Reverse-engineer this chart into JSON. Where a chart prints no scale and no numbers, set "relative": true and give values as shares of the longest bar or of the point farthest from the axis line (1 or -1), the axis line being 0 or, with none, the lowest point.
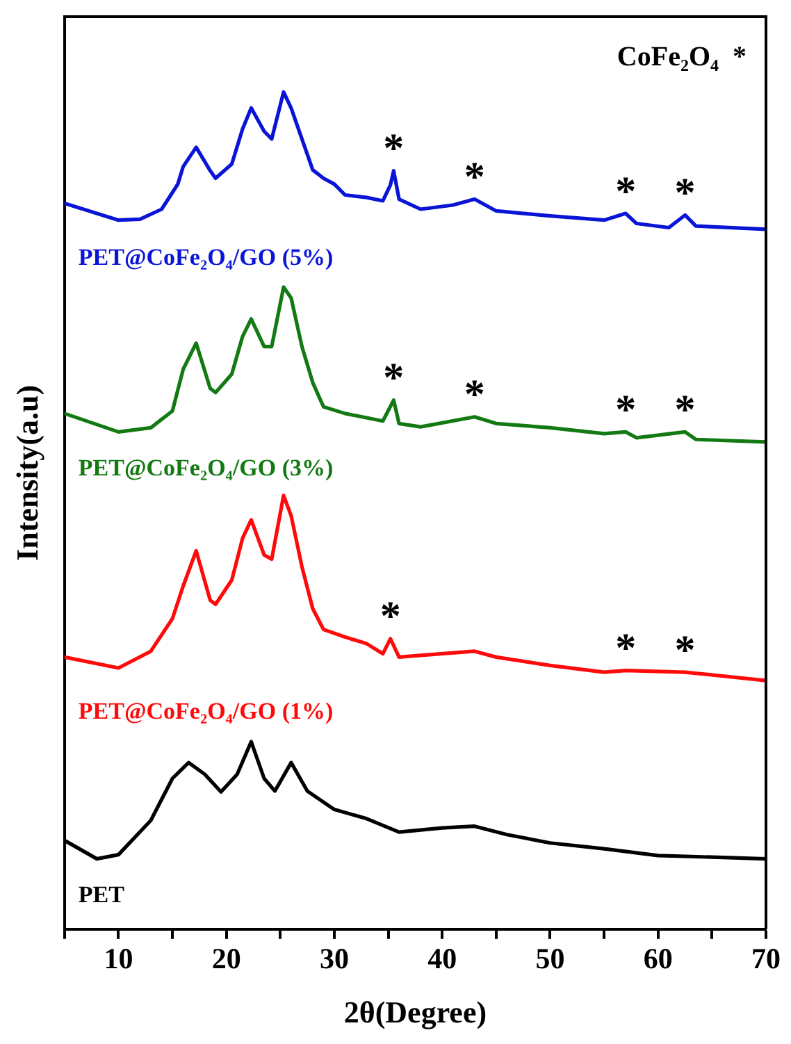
{
  "chart_data": {
    "type": "line",
    "relative": true,
    "xlabel": "2θ(Degree)",
    "ylabel": "Intensity(a.u)",
    "xlim": [
      5,
      70
    ],
    "xticks": [
      {
        "value": 5,
        "label": null
      },
      10,
      {
        "value": 15,
        "label": null
      },
      20,
      {
        "value": 25,
        "label": null
      },
      30,
      {
        "value": 35,
        "label": null
      },
      40,
      {
        "value": 45,
        "label": null
      },
      50,
      {
        "value": 55,
        "label": null
      },
      60,
      {
        "value": 65,
        "label": null
      },
      70
    ],
    "grid": false,
    "legend": false,
    "marker": "none",
    "line_style": "solid",
    "series": [
      {
        "name": "PET@CoFe₂O₄/GO (5%)",
        "color": "#0a14d6",
        "x": [
          5,
          10,
          12,
          14,
          15.5,
          16,
          17.2,
          18.5,
          19,
          20.5,
          21.5,
          22.3,
          23.5,
          24.2,
          25.3,
          26,
          27,
          28,
          29,
          30,
          31,
          33,
          34.5,
          35.2,
          35.5,
          36,
          38,
          41,
          43,
          45,
          50,
          55,
          57,
          58,
          61,
          62.5,
          63.5,
          70
        ],
        "values": [
          0.867,
          0.847,
          0.848,
          0.86,
          0.89,
          0.911,
          0.934,
          0.906,
          0.897,
          0.914,
          0.956,
          0.981,
          0.953,
          0.944,
          1.0,
          0.981,
          0.944,
          0.907,
          0.897,
          0.89,
          0.877,
          0.874,
          0.87,
          0.889,
          0.906,
          0.872,
          0.86,
          0.865,
          0.872,
          0.858,
          0.852,
          0.847,
          0.855,
          0.843,
          0.838,
          0.853,
          0.84,
          0.836
        ]
      },
      {
        "name": "PET@CoFe₂O₄/GO (3%)",
        "color": "#137a13",
        "x": [
          5,
          10,
          13,
          15,
          16,
          17.2,
          18.5,
          19,
          20.5,
          21.5,
          22.3,
          23.5,
          24.2,
          25.3,
          26,
          27,
          28,
          29,
          31,
          34.5,
          35.5,
          36,
          38,
          43,
          45,
          50,
          55,
          57,
          58,
          62.5,
          63.5,
          70
        ],
        "values": [
          0.616,
          0.594,
          0.599,
          0.619,
          0.669,
          0.7,
          0.646,
          0.641,
          0.663,
          0.708,
          0.729,
          0.696,
          0.696,
          0.767,
          0.754,
          0.696,
          0.653,
          0.624,
          0.616,
          0.607,
          0.632,
          0.604,
          0.6,
          0.612,
          0.604,
          0.599,
          0.592,
          0.594,
          0.587,
          0.594,
          0.585,
          0.582
        ]
      },
      {
        "name": "PET@CoFe₂O₄/GO (1%)",
        "color": "#ff0a0a",
        "x": [
          5,
          10,
          13,
          15,
          16,
          17.2,
          18.5,
          19,
          20.5,
          21.5,
          22.3,
          23.5,
          24.2,
          25.3,
          26,
          27,
          28,
          29,
          31,
          33,
          34.5,
          35.2,
          36,
          38,
          43,
          45,
          50,
          55,
          57,
          62.5,
          70
        ],
        "values": [
          0.325,
          0.312,
          0.332,
          0.371,
          0.41,
          0.452,
          0.393,
          0.388,
          0.417,
          0.467,
          0.489,
          0.447,
          0.442,
          0.518,
          0.494,
          0.433,
          0.383,
          0.358,
          0.349,
          0.341,
          0.329,
          0.347,
          0.325,
          0.327,
          0.332,
          0.325,
          0.315,
          0.307,
          0.309,
          0.307,
          0.297
        ]
      },
      {
        "name": "PET",
        "color": "#000000",
        "x": [
          5,
          8,
          10,
          13,
          15,
          16.5,
          18,
          19.5,
          21,
          22.3,
          23.5,
          24.5,
          26,
          27.5,
          30,
          33,
          36,
          40,
          43,
          46,
          50,
          55,
          60,
          65,
          70
        ],
        "values": [
          0.106,
          0.084,
          0.089,
          0.13,
          0.18,
          0.199,
          0.185,
          0.164,
          0.185,
          0.224,
          0.18,
          0.165,
          0.199,
          0.165,
          0.143,
          0.132,
          0.116,
          0.121,
          0.123,
          0.113,
          0.103,
          0.096,
          0.088,
          0.086,
          0.084
        ]
      }
    ],
    "annotations": [
      "CoFe₂O₄  *",
      {
        "text": "*",
        "x": 35.5,
        "y": 0.906
      },
      {
        "text": "*",
        "x": 43,
        "y": 0.872
      },
      {
        "text": "*",
        "x": 57,
        "y": 0.855
      },
      {
        "text": "*",
        "x": 62.5,
        "y": 0.853
      },
      {
        "text": "*",
        "x": 35.5,
        "y": 0.632
      },
      {
        "text": "*",
        "x": 43,
        "y": 0.612
      },
      {
        "text": "*",
        "x": 57,
        "y": 0.594
      },
      {
        "text": "*",
        "x": 62.5,
        "y": 0.594
      },
      {
        "text": "*",
        "x": 35.2,
        "y": 0.347
      },
      {
        "text": "*",
        "x": 57,
        "y": 0.309
      },
      {
        "text": "*",
        "x": 62.5,
        "y": 0.307
      }
    ]
  }
}
